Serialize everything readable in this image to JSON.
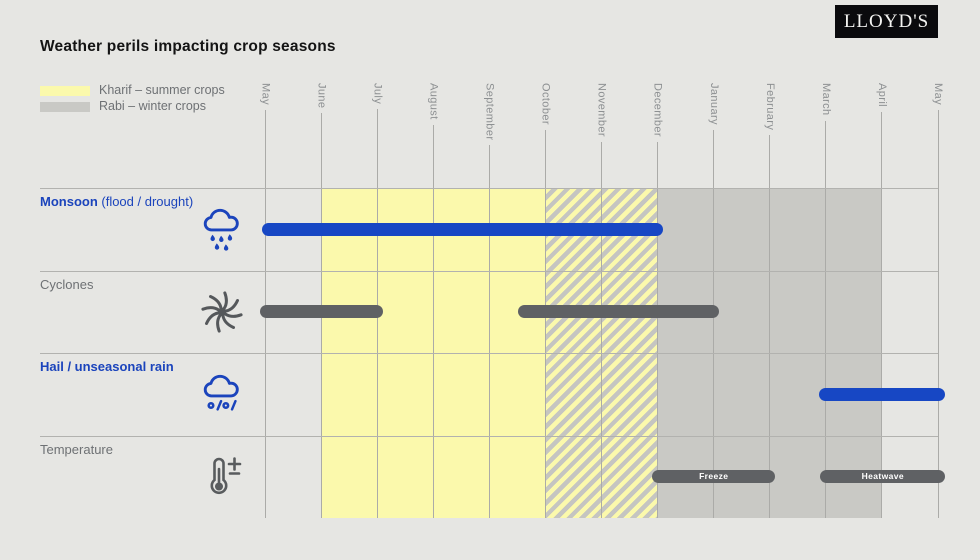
{
  "logo": {
    "text": "LLOYD'S"
  },
  "title": "Weather perils impacting crop seasons",
  "legend": [
    {
      "label": "Kharif – summer crops",
      "color": "#fbf9ac"
    },
    {
      "label": "Rabi – winter crops",
      "color": "#c9c9c5"
    }
  ],
  "colors": {
    "background": "#e6e6e3",
    "kharif_yellow": "#fbf9ac",
    "rabi_gray": "#c9c9c5",
    "peril_blue": "#1747c4",
    "peril_dark_gray": "#5f6164",
    "text_gray": "#6e7174",
    "month_gray": "#8d9092",
    "logo_black": "#0a0a0d"
  },
  "chart_data": {
    "type": "gantt-timeline",
    "title": "Weather perils impacting crop seasons",
    "x_unit": "month index, 0 = first May tick, spacing = 1 month",
    "months": [
      "May",
      "June",
      "July",
      "August",
      "September",
      "October",
      "November",
      "December",
      "January",
      "February",
      "March",
      "April",
      "May"
    ],
    "seasons": [
      {
        "name": "Kharif – summer crops",
        "style": "solid-yellow",
        "start": 1,
        "end": 5,
        "from": "June",
        "to": "October"
      },
      {
        "name": "Kharif / Rabi overlap",
        "style": "hatched",
        "start": 5,
        "end": 7,
        "from": "October",
        "to": "December"
      },
      {
        "name": "Rabi – winter crops",
        "style": "solid-gray",
        "start": 7,
        "end": 11,
        "from": "December",
        "to": "April"
      }
    ],
    "rows": [
      {
        "label": "Monsoon",
        "label_secondary": " (flood / drought)",
        "label_style": "blue",
        "icon": "rain-cloud-icon",
        "bars": [
          {
            "start": -0.05,
            "end": 7.1,
            "color": "blue",
            "label": "",
            "from": "May",
            "to": "December"
          }
        ]
      },
      {
        "label": "Cyclones",
        "label_secondary": "",
        "label_style": "gray",
        "icon": "cyclone-icon",
        "bars": [
          {
            "start": -0.09,
            "end": 2.1,
            "color": "gray",
            "label": "",
            "from": "May",
            "to": "July"
          },
          {
            "start": 4.5,
            "end": 8.1,
            "color": "gray",
            "label": "",
            "from": "mid-September",
            "to": "January"
          }
        ]
      },
      {
        "label": "Hail / unseasonal rain",
        "label_secondary": "",
        "label_style": "blue",
        "icon": "hail-cloud-icon",
        "bars": [
          {
            "start": 9.88,
            "end": 12.13,
            "color": "blue",
            "label": "",
            "from": "March",
            "to": "May"
          }
        ]
      },
      {
        "label": "Temperature",
        "label_secondary": "",
        "label_style": "gray",
        "icon": "thermometer-icon",
        "bars": [
          {
            "start": 6.9,
            "end": 9.1,
            "color": "gray",
            "label": "Freeze",
            "from": "December",
            "to": "February"
          },
          {
            "start": 9.9,
            "end": 12.13,
            "color": "gray",
            "label": "Heatwave",
            "from": "March",
            "to": "May"
          }
        ]
      }
    ],
    "legend_position": "top-left",
    "grid": true
  }
}
